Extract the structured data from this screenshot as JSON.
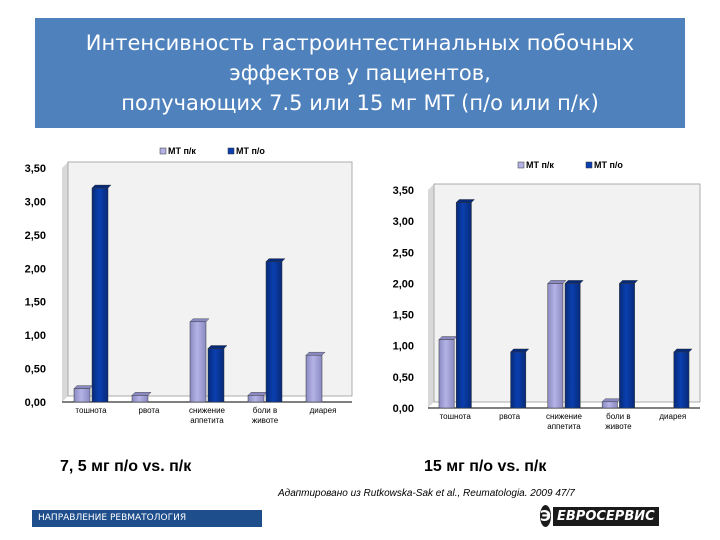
{
  "title": {
    "lines": [
      "Интенсивность гастроинтестинальных побочных",
      "эффектов у пациентов,",
      "получающих 7.5 или 15 мг МТ (п/о или п/к)"
    ]
  },
  "chart_data": [
    {
      "type": "bar",
      "categories": [
        [
          "тошнота"
        ],
        [
          "рвота"
        ],
        [
          "снижение",
          "аппетита"
        ],
        [
          "боли в",
          "животе"
        ],
        [
          "диарея"
        ]
      ],
      "series": [
        {
          "name": "МТ п/к",
          "values": [
            0.2,
            0.1,
            1.2,
            0.1,
            0.7
          ]
        },
        {
          "name": "МТ п/о",
          "values": [
            3.2,
            0,
            0.8,
            2.1,
            0
          ]
        }
      ],
      "yticks": [
        "0,00",
        "0,50",
        "1,00",
        "1,50",
        "2,00",
        "2,50",
        "3,00",
        "3,50"
      ],
      "ylim": [
        0,
        3.5
      ],
      "legend": "top",
      "caption": "7, 5 мг п/о vs. п/к"
    },
    {
      "type": "bar",
      "categories": [
        [
          "тошнота"
        ],
        [
          "рвота"
        ],
        [
          "снижение",
          "аппетита"
        ],
        [
          "боли в",
          "животе"
        ],
        [
          "диарея"
        ]
      ],
      "series": [
        {
          "name": "МТ п/к",
          "values": [
            1.1,
            0,
            2.0,
            0.1,
            0
          ]
        },
        {
          "name": "МТ п/о",
          "values": [
            3.3,
            0.9,
            2.0,
            2.0,
            0.9
          ]
        }
      ],
      "yticks": [
        "0,00",
        "0,50",
        "1,00",
        "1,50",
        "2,00",
        "2,50",
        "3,00",
        "3,50"
      ],
      "ylim": [
        0,
        3.5
      ],
      "legend": "top",
      "caption": "15 мг п/о vs. п/к"
    }
  ],
  "colors": {
    "title_bg": "#4f81bd",
    "series_sc": "#b3b3e6",
    "series_po": "#0b3fb0",
    "plot_bg": "#f2f2f2"
  },
  "source": "Адаптировано из Rutkowska-Sak et al., Reumatologia. 2009 47/7",
  "footer": "НАПРАВЛЕНИЕ РЕВМАТОЛОГИЯ",
  "logo": {
    "mark": "Э",
    "text": "ЕВРОСЕРВИС",
    "icon": "evroservis-logo-icon"
  }
}
